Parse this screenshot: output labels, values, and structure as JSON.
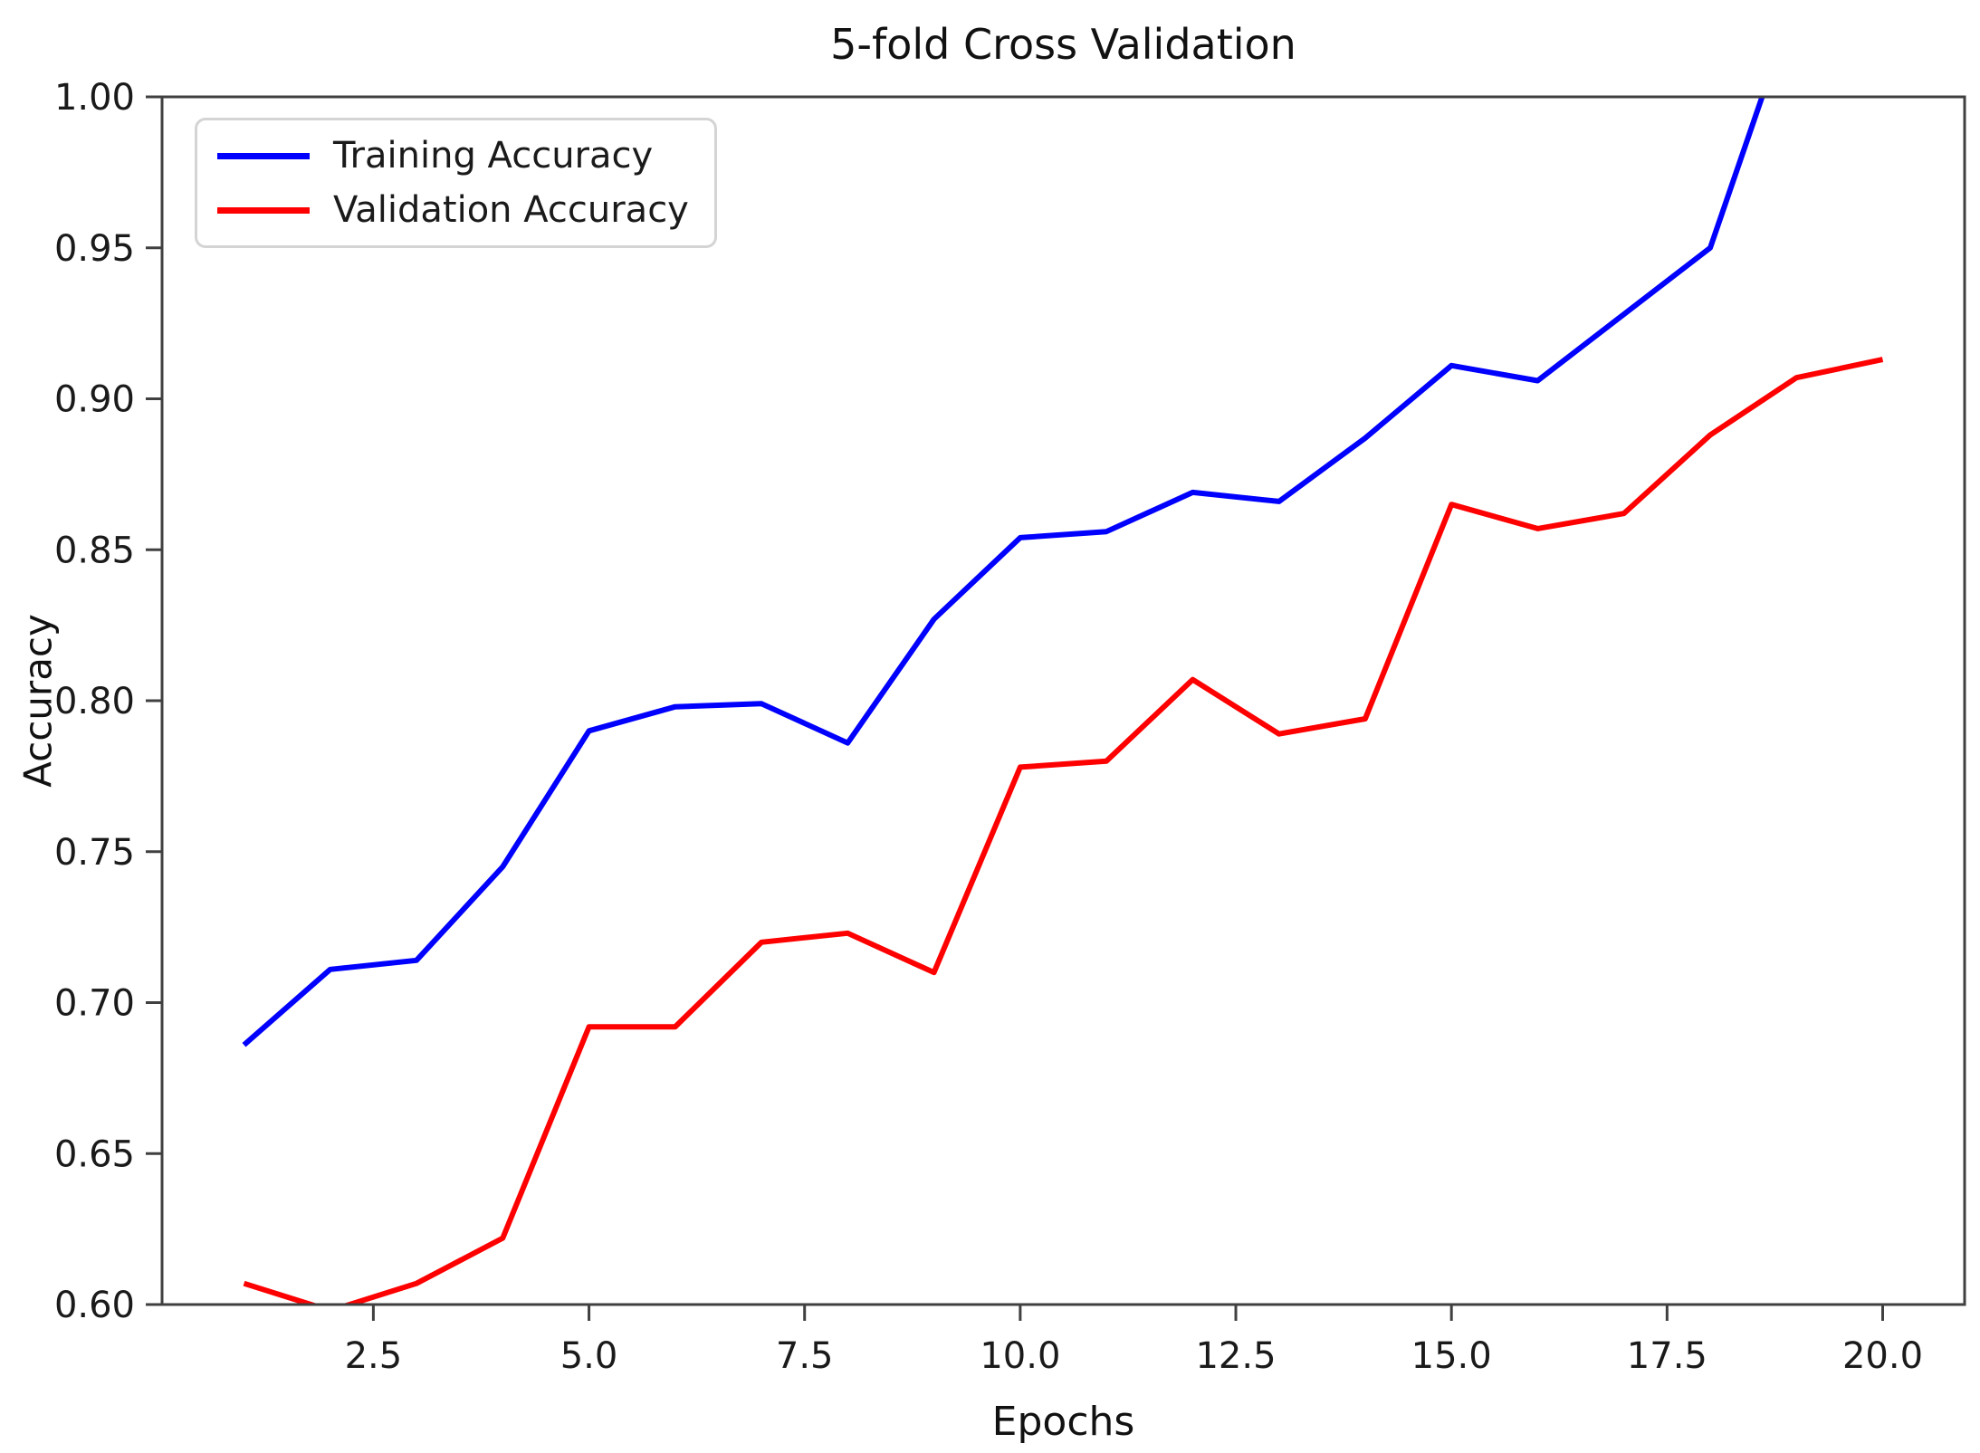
{
  "chart_data": {
    "type": "line",
    "title": "5-fold Cross Validation",
    "xlabel": "Epochs",
    "ylabel": "Accuracy",
    "xlim": [
      0.05,
      20.95
    ],
    "ylim": [
      0.6,
      1.0
    ],
    "grid": false,
    "legend_position": "upper left",
    "background_color": "#ffffff",
    "spine_color": "#404040",
    "tick_label_color": "#1a1a1a",
    "x_ticks": [
      {
        "v": 2.5,
        "label": "2.5"
      },
      {
        "v": 5.0,
        "label": "5.0"
      },
      {
        "v": 7.5,
        "label": "7.5"
      },
      {
        "v": 10.0,
        "label": "10.0"
      },
      {
        "v": 12.5,
        "label": "12.5"
      },
      {
        "v": 15.0,
        "label": "15.0"
      },
      {
        "v": 17.5,
        "label": "17.5"
      },
      {
        "v": 20.0,
        "label": "20.0"
      }
    ],
    "y_ticks": [
      {
        "v": 0.6,
        "label": "0.60"
      },
      {
        "v": 0.65,
        "label": "0.65"
      },
      {
        "v": 0.7,
        "label": "0.70"
      },
      {
        "v": 0.75,
        "label": "0.75"
      },
      {
        "v": 0.8,
        "label": "0.80"
      },
      {
        "v": 0.85,
        "label": "0.85"
      },
      {
        "v": 0.9,
        "label": "0.90"
      },
      {
        "v": 0.95,
        "label": "0.95"
      },
      {
        "v": 1.0,
        "label": "1.00"
      }
    ],
    "series": [
      {
        "name": "Training Accuracy",
        "color": "#0000ff",
        "points": [
          [
            1,
            0.686
          ],
          [
            2,
            0.711
          ],
          [
            3,
            0.714
          ],
          [
            4,
            0.745
          ],
          [
            5,
            0.79
          ],
          [
            6,
            0.798
          ],
          [
            7,
            0.799
          ],
          [
            8,
            0.786
          ],
          [
            9,
            0.827
          ],
          [
            10,
            0.854
          ],
          [
            11,
            0.856
          ],
          [
            12,
            0.869
          ],
          [
            13,
            0.866
          ],
          [
            14,
            0.887
          ],
          [
            15,
            0.911
          ],
          [
            16,
            0.906
          ],
          [
            17,
            0.928
          ],
          [
            18,
            0.95
          ],
          [
            19,
            1.033
          ]
        ],
        "note": "line rises past 1.00 and is clipped at the top axis between epochs 18 and 19"
      },
      {
        "name": "Validation Accuracy",
        "color": "#ff0000",
        "points": [
          [
            1,
            0.607
          ],
          [
            2,
            0.598
          ],
          [
            3,
            0.607
          ],
          [
            4,
            0.622
          ],
          [
            5,
            0.692
          ],
          [
            6,
            0.692
          ],
          [
            7,
            0.72
          ],
          [
            8,
            0.723
          ],
          [
            9,
            0.71
          ],
          [
            10,
            0.778
          ],
          [
            11,
            0.78
          ],
          [
            12,
            0.807
          ],
          [
            13,
            0.789
          ],
          [
            14,
            0.794
          ],
          [
            15,
            0.865
          ],
          [
            16,
            0.857
          ],
          [
            17,
            0.862
          ],
          [
            18,
            0.888
          ],
          [
            19,
            0.907
          ],
          [
            20,
            0.913
          ]
        ],
        "note": "dips slightly below 0.60 at epoch 2 and is clipped by the bottom axis"
      }
    ]
  }
}
